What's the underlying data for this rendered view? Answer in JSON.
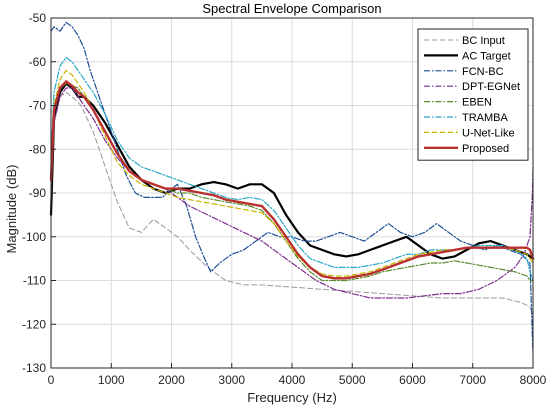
{
  "chart_data": {
    "type": "line",
    "title": "Spectral Envelope Comparison",
    "xlabel": "Frequency (Hz)",
    "ylabel": "Magnitude (dB)",
    "xlim": [
      0,
      8000
    ],
    "ylim": [
      -130,
      -50
    ],
    "xticks": [
      0,
      1000,
      2000,
      3000,
      4000,
      5000,
      6000,
      7000,
      8000
    ],
    "xtick_labels": [
      "0",
      "1000",
      "2000",
      "3000",
      "4000",
      "5000",
      "6000",
      "7000",
      "8000"
    ],
    "yticks": [
      -130,
      -120,
      -110,
      -100,
      -90,
      -80,
      -70,
      -60,
      -50
    ],
    "ytick_labels": [
      "-130",
      "-120",
      "-110",
      "-100",
      "-90",
      "-80",
      "-70",
      "-60",
      "-50"
    ],
    "grid": true,
    "legend_position": "top-right",
    "series": [
      {
        "name": "BC Input",
        "color": "#999999",
        "style": "dashed",
        "width": 1,
        "x": [
          0,
          50,
          150,
          250,
          350,
          500,
          700,
          900,
          1100,
          1300,
          1500,
          1700,
          1900,
          2100,
          2300,
          2600,
          2900,
          3200,
          3500,
          4000,
          4500,
          5000,
          5500,
          6000,
          6500,
          7000,
          7500,
          7800,
          7950,
          8000
        ],
        "y": [
          -88,
          -73,
          -68,
          -67,
          -68,
          -70,
          -76,
          -84,
          -92,
          -98,
          -99,
          -96,
          -98,
          -100,
          -103,
          -107,
          -110,
          -111,
          -111,
          -111.5,
          -112,
          -112.5,
          -113,
          -113.5,
          -114,
          -114,
          -114,
          -115,
          -116,
          -118
        ]
      },
      {
        "name": "AC Target",
        "color": "#000000",
        "style": "solid",
        "width": 2.2,
        "x": [
          0,
          50,
          150,
          250,
          350,
          450,
          550,
          700,
          900,
          1100,
          1300,
          1500,
          1700,
          1900,
          2100,
          2300,
          2500,
          2700,
          2900,
          3100,
          3300,
          3500,
          3700,
          3900,
          4100,
          4300,
          4500,
          4700,
          4900,
          5100,
          5300,
          5500,
          5700,
          5900,
          6100,
          6300,
          6500,
          6700,
          6900,
          7100,
          7300,
          7500,
          7700,
          7900,
          8000
        ],
        "y": [
          -95,
          -73,
          -67,
          -65,
          -66,
          -68,
          -68,
          -70,
          -74,
          -79,
          -84,
          -87,
          -89,
          -90,
          -89,
          -89,
          -88,
          -87.5,
          -88,
          -89,
          -88,
          -88,
          -90,
          -95,
          -99,
          -102,
          -103,
          -104,
          -104.5,
          -104,
          -103,
          -102,
          -101,
          -100,
          -102,
          -104,
          -105,
          -104.5,
          -103,
          -101.5,
          -101,
          -102,
          -103,
          -104,
          -105
        ]
      },
      {
        "name": "FCN-BC",
        "color": "#1f4f99",
        "style": "dashdot",
        "width": 1.2,
        "x": [
          0,
          50,
          150,
          250,
          350,
          450,
          550,
          650,
          800,
          950,
          1100,
          1250,
          1400,
          1550,
          1700,
          1850,
          2000,
          2100,
          2250,
          2400,
          2550,
          2650,
          2800,
          3000,
          3200,
          3400,
          3600,
          3800,
          4000,
          4200,
          4400,
          4600,
          4800,
          5000,
          5200,
          5400,
          5600,
          5800,
          6000,
          6200,
          6400,
          6600,
          6800,
          7000,
          7200,
          7400,
          7600,
          7800,
          7950,
          8000
        ],
        "y": [
          -53,
          -52,
          -53,
          -51,
          -52,
          -54,
          -57,
          -62,
          -68,
          -74,
          -80,
          -86,
          -90,
          -91,
          -91,
          -91,
          -89,
          -88,
          -93,
          -100,
          -105,
          -108,
          -106,
          -104,
          -103,
          -101,
          -99,
          -100,
          -100,
          -101,
          -101,
          -100,
          -99,
          -100,
          -101,
          -99,
          -97,
          -99,
          -100,
          -99,
          -97,
          -99,
          -101,
          -102,
          -103,
          -102,
          -103,
          -104,
          -106,
          -127
        ]
      },
      {
        "name": "DPT-EGNet",
        "color": "#7f2f8f",
        "style": "dashdot",
        "width": 1.2,
        "x": [
          0,
          50,
          150,
          250,
          350,
          500,
          700,
          900,
          1100,
          1300,
          1500,
          1700,
          1900,
          2100,
          2300,
          2600,
          2900,
          3200,
          3500,
          3800,
          4100,
          4400,
          4700,
          5000,
          5300,
          5600,
          5900,
          6200,
          6500,
          6800,
          7100,
          7400,
          7700,
          7850,
          7950,
          7990,
          8000
        ],
        "y": [
          -90,
          -74,
          -68,
          -66,
          -66,
          -69,
          -73,
          -78,
          -82,
          -85,
          -87,
          -88,
          -89,
          -91,
          -93,
          -95,
          -97,
          -99,
          -101,
          -104,
          -107,
          -110,
          -112,
          -113,
          -114,
          -114,
          -114,
          -113.5,
          -113,
          -113,
          -112,
          -110,
          -107,
          -104,
          -100,
          -90,
          -84
        ]
      },
      {
        "name": "EBEN",
        "color": "#5c8a2e",
        "style": "dashdot",
        "width": 1.2,
        "x": [
          0,
          50,
          150,
          250,
          350,
          450,
          550,
          700,
          900,
          1100,
          1300,
          1500,
          1700,
          1900,
          2100,
          2300,
          2500,
          2700,
          2900,
          3100,
          3300,
          3500,
          3700,
          3900,
          4100,
          4300,
          4500,
          4700,
          4900,
          5100,
          5300,
          5500,
          5700,
          5900,
          6100,
          6300,
          6500,
          6700,
          6900,
          7100,
          7300,
          7500,
          7700,
          7900,
          7950,
          8000
        ],
        "y": [
          -89,
          -72,
          -66,
          -65,
          -65.5,
          -66,
          -68,
          -71,
          -76,
          -81,
          -85,
          -87,
          -88,
          -89,
          -90,
          -90,
          -91,
          -91.5,
          -92,
          -92.5,
          -93,
          -94,
          -97,
          -101,
          -105,
          -108,
          -110,
          -110,
          -110,
          -109.5,
          -109,
          -108,
          -107.5,
          -107,
          -106.5,
          -106,
          -106,
          -105.5,
          -106,
          -106.5,
          -107,
          -107.5,
          -108,
          -109,
          -110,
          -110
        ]
      },
      {
        "name": "TRAMBA",
        "color": "#2aa8c9",
        "style": "dashdot",
        "width": 1.2,
        "x": [
          0,
          50,
          150,
          250,
          350,
          450,
          550,
          700,
          900,
          1100,
          1300,
          1500,
          1700,
          1900,
          2100,
          2300,
          2500,
          2700,
          2900,
          3100,
          3300,
          3500,
          3700,
          3900,
          4100,
          4300,
          4500,
          4700,
          4900,
          5100,
          5300,
          5500,
          5700,
          5900,
          6100,
          6300,
          6500,
          6700,
          6900,
          7100,
          7300,
          7500,
          7700,
          7900,
          7950,
          8000
        ],
        "y": [
          -82,
          -67,
          -61,
          -59,
          -60,
          -62,
          -64,
          -67,
          -72,
          -78,
          -82,
          -84,
          -85,
          -86,
          -87,
          -88,
          -89,
          -90,
          -91,
          -91.5,
          -91,
          -91.5,
          -94,
          -98,
          -102,
          -105,
          -106,
          -107,
          -107,
          -107,
          -106.5,
          -106,
          -105,
          -104,
          -104,
          -103,
          -103,
          -103,
          -102.5,
          -102,
          -102,
          -102,
          -103,
          -105,
          -108,
          -110
        ]
      },
      {
        "name": "U-Net-Like",
        "color": "#c8b400",
        "style": "dashed",
        "width": 1.2,
        "x": [
          0,
          50,
          150,
          250,
          350,
          450,
          550,
          700,
          900,
          1100,
          1300,
          1500,
          1700,
          1900,
          2100,
          2300,
          2500,
          2700,
          2900,
          3100,
          3300,
          3500,
          3700,
          3900,
          4100,
          4300,
          4500,
          4700,
          4900,
          5100,
          5300,
          5500,
          5700,
          5900,
          6100,
          6300,
          6500,
          6700,
          6900,
          7100,
          7300,
          7500,
          7700,
          7900,
          7950,
          8000
        ],
        "y": [
          -86,
          -70,
          -64,
          -62,
          -63,
          -65,
          -67,
          -71,
          -77,
          -83,
          -86,
          -88,
          -89,
          -90,
          -91,
          -91.5,
          -92,
          -92.5,
          -93,
          -93.5,
          -94,
          -94.5,
          -97,
          -101,
          -104.5,
          -107,
          -108.5,
          -109,
          -109,
          -108.5,
          -108,
          -107,
          -106,
          -105,
          -104,
          -103.5,
          -103,
          -103,
          -102.5,
          -102.5,
          -102.5,
          -102.5,
          -103,
          -104,
          -105,
          -106
        ]
      },
      {
        "name": "Proposed",
        "color": "#b8312f",
        "style": "solid",
        "width": 2.4,
        "x": [
          0,
          50,
          150,
          250,
          350,
          450,
          550,
          700,
          900,
          1100,
          1300,
          1500,
          1700,
          1900,
          2100,
          2300,
          2500,
          2700,
          2900,
          3100,
          3300,
          3500,
          3700,
          3900,
          4100,
          4300,
          4500,
          4700,
          4900,
          5100,
          5300,
          5500,
          5700,
          5900,
          6100,
          6300,
          6500,
          6700,
          6900,
          7100,
          7300,
          7500,
          7700,
          7900,
          7950,
          8000
        ],
        "y": [
          -87,
          -71,
          -66,
          -64.5,
          -65.5,
          -67,
          -68,
          -71,
          -76,
          -81,
          -85,
          -87,
          -88,
          -89,
          -89,
          -89.5,
          -90,
          -90.5,
          -91.5,
          -92,
          -92.5,
          -93,
          -96,
          -100,
          -104,
          -107,
          -109,
          -109.5,
          -109.5,
          -109,
          -108.5,
          -107.5,
          -106.5,
          -105.5,
          -104.5,
          -104,
          -103.5,
          -103,
          -102.5,
          -102.5,
          -102.5,
          -102.5,
          -102.5,
          -102.5,
          -103,
          -105
        ]
      }
    ]
  }
}
